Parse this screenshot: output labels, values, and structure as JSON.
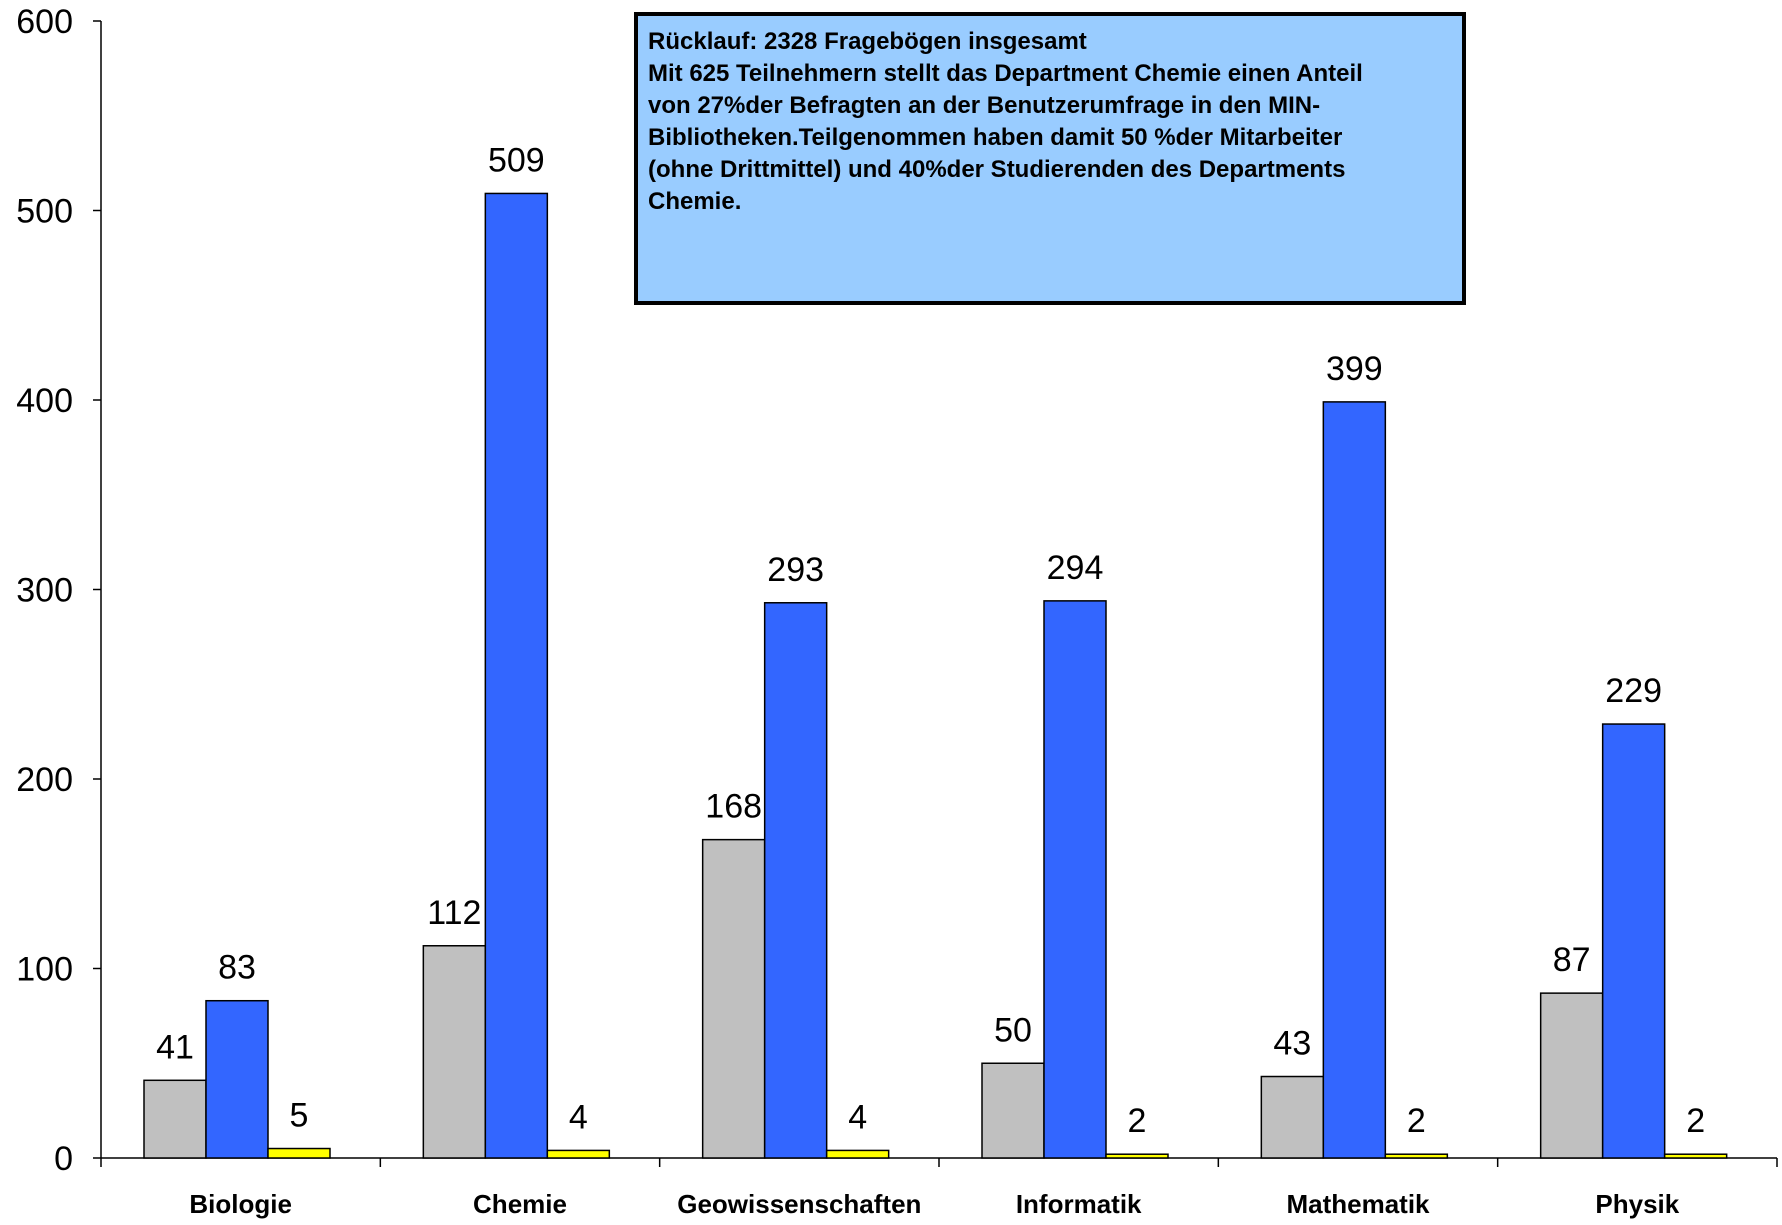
{
  "colors": {
    "series_1": "#c0c0c0",
    "series_2": "#3366ff",
    "series_3": "#ffff00",
    "annotation_bg": "#99ccff"
  },
  "annotation": {
    "lines": [
      "Rücklauf: 2328 Fragebögen insgesamt",
      "Mit 625 Teilnehmern stellt das Department Chemie einen Anteil",
      "von 27%der Befragten an der Benutzerumfrage in den MIN-",
      "Bibliotheken.Teilgenommen haben damit 50 %der Mitarbeiter",
      "(ohne Drittmittel) und 40%der Studierenden des Departments",
      "Chemie."
    ]
  },
  "chart_data": {
    "type": "bar",
    "title": "",
    "xlabel": "",
    "ylabel": "",
    "ylim": [
      0,
      600
    ],
    "yticks": [
      0,
      100,
      200,
      300,
      400,
      500,
      600
    ],
    "grid": false,
    "legend": "none",
    "categories": [
      "Biologie",
      "Chemie",
      "Geowissenschaften",
      "Informatik",
      "Mathematik",
      "Physik"
    ],
    "series": [
      {
        "values": [
          41,
          112,
          168,
          50,
          43,
          87
        ]
      },
      {
        "values": [
          83,
          509,
          293,
          294,
          399,
          229
        ]
      },
      {
        "values": [
          5,
          4,
          4,
          2,
          2,
          2
        ]
      }
    ]
  }
}
